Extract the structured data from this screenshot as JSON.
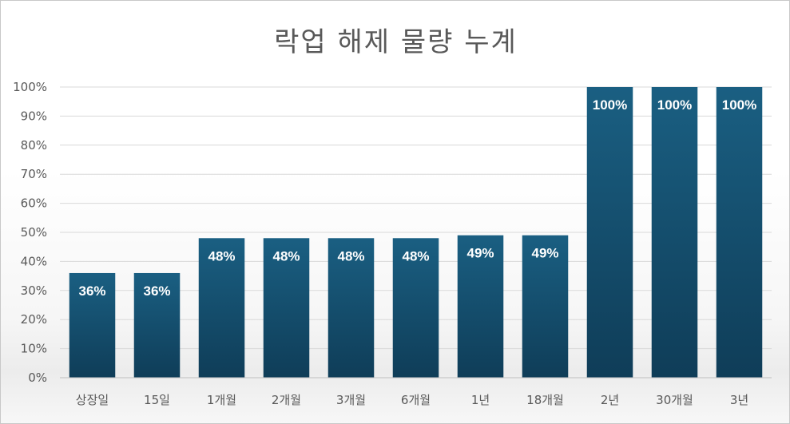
{
  "chart_data": {
    "type": "bar",
    "title": "락업 해제 물량 누계",
    "categories": [
      "상장일",
      "15일",
      "1개월",
      "2개월",
      "3개월",
      "6개월",
      "1년",
      "18개월",
      "2년",
      "30개월",
      "3년"
    ],
    "values": [
      36,
      36,
      48,
      48,
      48,
      48,
      49,
      49,
      100,
      100,
      100
    ],
    "data_labels": [
      "36%",
      "36%",
      "48%",
      "48%",
      "48%",
      "48%",
      "49%",
      "49%",
      "100%",
      "100%",
      "100%"
    ],
    "y_ticks": [
      "0%",
      "10%",
      "20%",
      "30%",
      "40%",
      "50%",
      "60%",
      "70%",
      "80%",
      "90%",
      "100%"
    ],
    "ylim": [
      0,
      100
    ],
    "xlabel": "",
    "ylabel": "",
    "grid": true,
    "legend": "none",
    "bar_color_top": "#1a5f82",
    "bar_color_bottom": "#0f3d58",
    "grid_color": "#d9d9d9"
  }
}
